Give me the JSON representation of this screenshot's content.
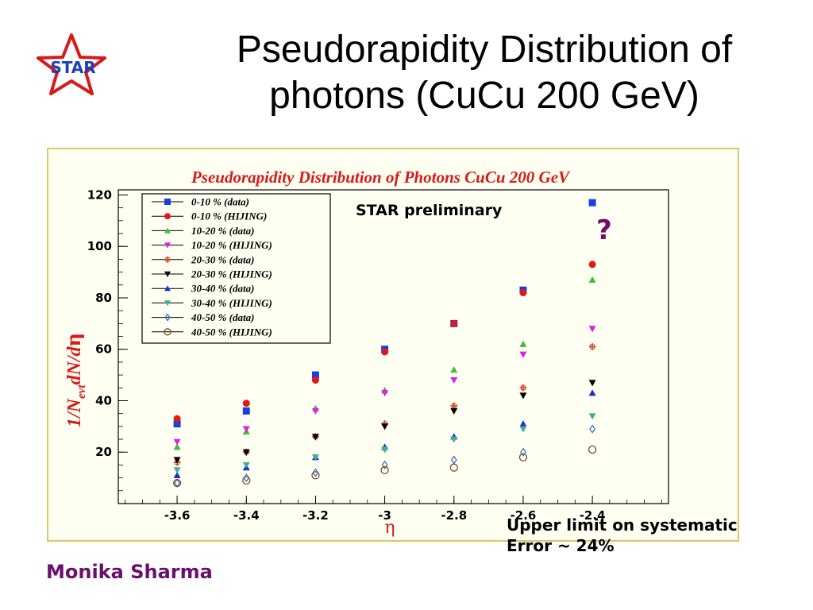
{
  "slide": {
    "title_line1": "Pseudorapidity Distribution of",
    "title_line2": "photons (CuCu 200 GeV)",
    "author": "Monika Sharma",
    "note_line1": "Upper limit on systematic",
    "note_line2": "Error ~ 24%",
    "logo_text": "STAR"
  },
  "colors": {
    "title_red": "#d81919",
    "author_purple": "#6a0f6a",
    "frame_border": "#d6c96a",
    "question_mark": "#7a0a6a"
  },
  "chart_data": {
    "type": "scatter",
    "title": "Pseudorapidity Distribution of Photons CuCu 200 GeV",
    "xlabel": "η",
    "ylabel": "1/N_evt dN/dη",
    "xlim": [
      -3.77,
      -2.18
    ],
    "ylim": [
      0,
      122
    ],
    "xticks": [
      -3.6,
      -3.4,
      -3.2,
      -3.0,
      -2.8,
      -2.6,
      -2.4
    ],
    "xtick_labels": [
      "-3.6",
      "-3.4",
      "-3.2",
      "-3",
      "-2.8",
      "-2.6",
      "-2.4"
    ],
    "yticks": [
      20,
      40,
      60,
      80,
      100,
      120
    ],
    "ytick_labels": [
      "20",
      "40",
      "60",
      "80",
      "100",
      "120"
    ],
    "annotations": [
      "STAR preliminary",
      "?"
    ],
    "legend_position": "top-left",
    "x": [
      -3.6,
      -3.4,
      -3.2,
      -3.0,
      -2.8,
      -2.6,
      -2.4
    ],
    "series": [
      {
        "name": "0-10 % (data)",
        "marker": "square",
        "color": "#1a3fe0",
        "values": [
          31,
          36,
          50,
          60,
          70,
          83,
          117
        ]
      },
      {
        "name": "0-10 % (HIJING)",
        "marker": "circle",
        "color": "#e01a1a",
        "values": [
          33,
          39,
          48,
          59,
          70,
          82,
          93
        ]
      },
      {
        "name": "10-20 % (data)",
        "marker": "triangle-up",
        "color": "#38c038",
        "values": [
          22,
          28,
          37,
          44,
          52,
          62,
          87
        ]
      },
      {
        "name": "10-20 % (HIJING)",
        "marker": "triangle-down",
        "color": "#e020e0",
        "values": [
          24,
          29,
          36,
          43,
          48,
          58,
          68
        ]
      },
      {
        "name": "20-30 % (data)",
        "marker": "cross",
        "color": "#d04020",
        "values": [
          16,
          20,
          26,
          31,
          38,
          45,
          61
        ]
      },
      {
        "name": "20-30 % (HIJING)",
        "marker": "triangle-down",
        "color": "#000000",
        "values": [
          17,
          20,
          26,
          30,
          36,
          42,
          47
        ]
      },
      {
        "name": "30-40 % (data)",
        "marker": "triangle-up",
        "color": "#1a30d0",
        "values": [
          11,
          14,
          18,
          22,
          26,
          31,
          43
        ]
      },
      {
        "name": "30-40 % (HIJING)",
        "marker": "triangle-down",
        "color": "#40b090",
        "values": [
          13,
          15,
          18,
          21,
          25,
          29,
          34
        ]
      },
      {
        "name": "40-50 % (data)",
        "marker": "diamond-open",
        "color": "#3a70c0",
        "values": [
          8,
          10,
          12,
          15,
          17,
          20,
          29
        ]
      },
      {
        "name": "40-50 % (HIJING)",
        "marker": "circle-open",
        "color": "#7a4a2a",
        "values": [
          8,
          9,
          11,
          13,
          14,
          18,
          21
        ]
      }
    ]
  }
}
